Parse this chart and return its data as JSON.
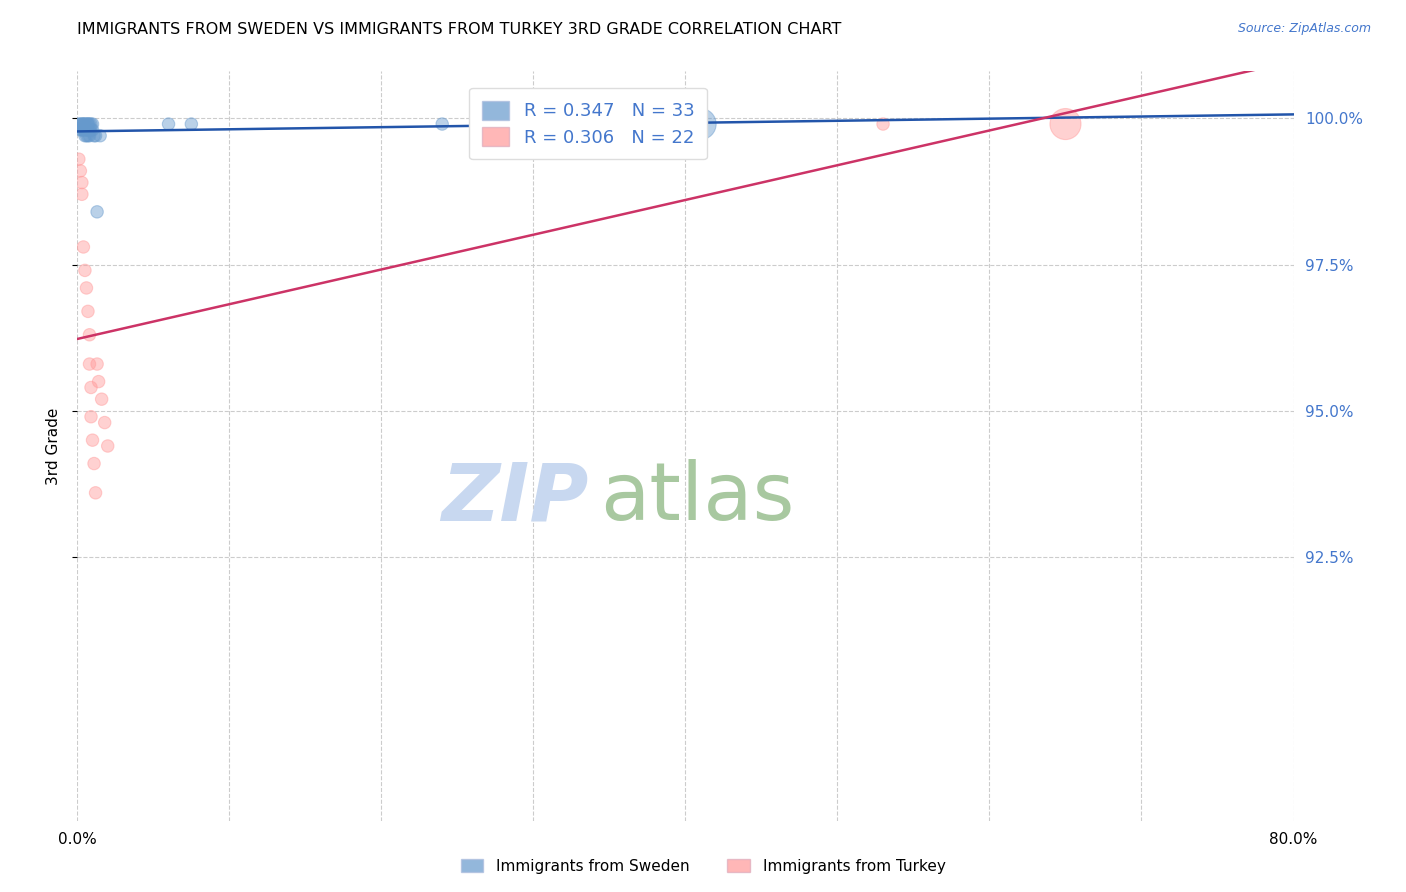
{
  "title": "IMMIGRANTS FROM SWEDEN VS IMMIGRANTS FROM TURKEY 3RD GRADE CORRELATION CHART",
  "source_text": "Source: ZipAtlas.com",
  "ylabel": "3rd Grade",
  "xlim": [
    0.0,
    0.8
  ],
  "ylim": [
    0.88,
    1.008
  ],
  "x_ticks": [
    0.0,
    0.1,
    0.2,
    0.3,
    0.4,
    0.5,
    0.6,
    0.7,
    0.8
  ],
  "x_tick_labels": [
    "0.0%",
    "",
    "",
    "",
    "",
    "",
    "",
    "",
    "80.0%"
  ],
  "y_ticks": [
    0.925,
    0.95,
    0.975,
    1.0
  ],
  "y_tick_labels": [
    "92.5%",
    "95.0%",
    "97.5%",
    "100.0%"
  ],
  "legend_R_sweden": "0.347",
  "legend_N_sweden": "33",
  "legend_R_turkey": "0.306",
  "legend_N_turkey": "22",
  "color_sweden": "#6699CC",
  "color_turkey": "#FF9999",
  "trendline_color_sweden": "#2255AA",
  "trendline_color_turkey": "#CC3366",
  "watermark_zip": "ZIP",
  "watermark_atlas": "atlas",
  "watermark_color_zip": "#C8D8F0",
  "watermark_color_atlas": "#A8C8A0",
  "sweden_x": [
    0.001,
    0.002,
    0.002,
    0.003,
    0.003,
    0.004,
    0.004,
    0.004,
    0.005,
    0.005,
    0.005,
    0.006,
    0.006,
    0.006,
    0.007,
    0.007,
    0.007,
    0.007,
    0.008,
    0.008,
    0.008,
    0.009,
    0.009,
    0.01,
    0.01,
    0.011,
    0.012,
    0.013,
    0.015,
    0.06,
    0.075,
    0.24,
    0.41
  ],
  "sweden_y": [
    0.999,
    0.999,
    0.998,
    0.999,
    0.998,
    0.999,
    0.999,
    0.998,
    0.999,
    0.998,
    0.997,
    0.999,
    0.998,
    0.997,
    0.999,
    0.999,
    0.998,
    0.997,
    0.999,
    0.998,
    0.997,
    0.999,
    0.998,
    0.999,
    0.998,
    0.997,
    0.997,
    0.984,
    0.997,
    0.999,
    0.999,
    0.999,
    0.999
  ],
  "sweden_size": [
    80,
    80,
    80,
    80,
    80,
    80,
    80,
    80,
    80,
    80,
    80,
    80,
    80,
    80,
    80,
    80,
    80,
    80,
    80,
    80,
    80,
    80,
    80,
    80,
    80,
    80,
    80,
    80,
    80,
    80,
    80,
    80,
    500
  ],
  "turkey_x": [
    0.001,
    0.002,
    0.003,
    0.003,
    0.004,
    0.005,
    0.006,
    0.007,
    0.008,
    0.008,
    0.009,
    0.009,
    0.01,
    0.011,
    0.012,
    0.013,
    0.014,
    0.016,
    0.018,
    0.02,
    0.53,
    0.65
  ],
  "turkey_y": [
    0.993,
    0.991,
    0.989,
    0.987,
    0.978,
    0.974,
    0.971,
    0.967,
    0.963,
    0.958,
    0.954,
    0.949,
    0.945,
    0.941,
    0.936,
    0.958,
    0.955,
    0.952,
    0.948,
    0.944,
    0.999,
    0.999
  ],
  "turkey_size": [
    80,
    80,
    80,
    80,
    80,
    80,
    80,
    80,
    80,
    80,
    80,
    80,
    80,
    80,
    80,
    80,
    80,
    80,
    80,
    80,
    80,
    500
  ]
}
